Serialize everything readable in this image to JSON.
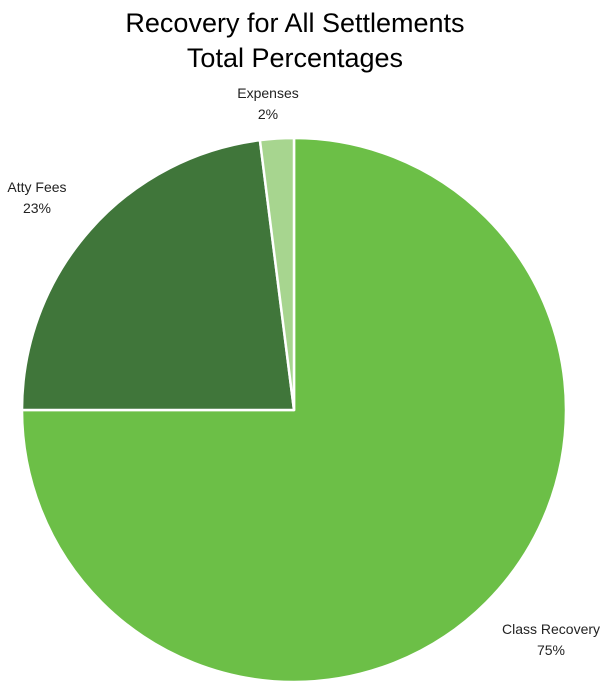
{
  "chart_data": {
    "type": "pie",
    "title": "Recovery for All Settlements",
    "subtitle": "Total Percentages",
    "slices": [
      {
        "label": "Class Recovery",
        "value": 75,
        "display": "75%",
        "color": "#6cbf47"
      },
      {
        "label": "Atty Fees",
        "value": 23,
        "display": "23%",
        "color": "#40763a"
      },
      {
        "label": "Expenses",
        "value": 2,
        "display": "2%",
        "color": "#a7d58f"
      }
    ],
    "slice_border_color": "#ffffff",
    "legend": "none"
  }
}
